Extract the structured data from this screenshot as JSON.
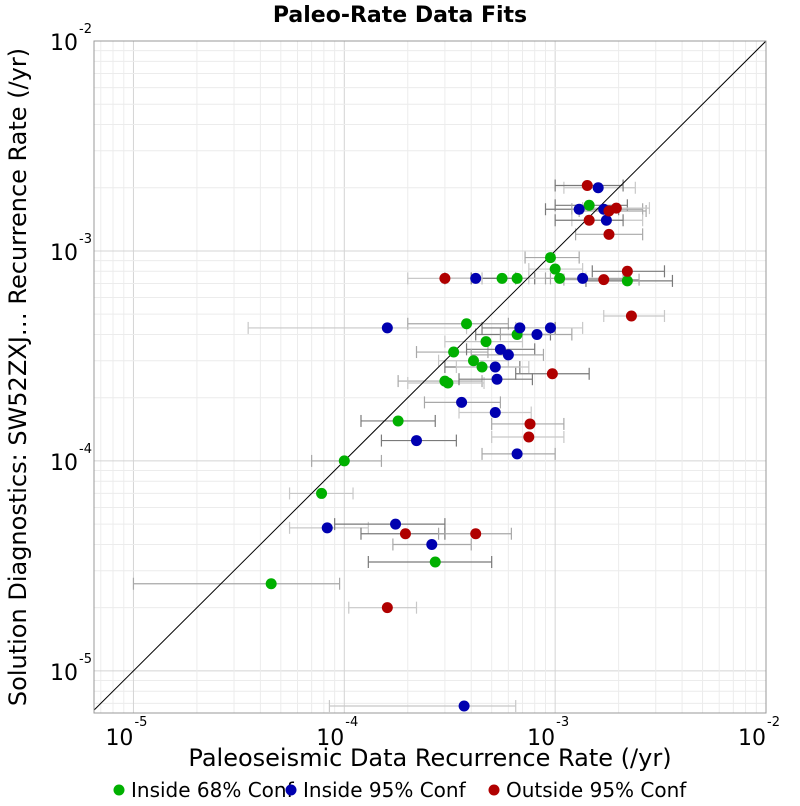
{
  "chart_data": {
    "type": "scatter",
    "title": "Paleo-Rate Data Fits",
    "xlabel": "Paleoseismic Data Recurrence Rate (/yr)",
    "ylabel": "Solution Diagnostics: SW52ZXJ… Recurrence Rate (/yr)",
    "x_scale": "log",
    "y_scale": "log",
    "xlim": [
      6.5e-06,
      0.01
    ],
    "ylim": [
      6.3e-06,
      0.01
    ],
    "x_ticks": [
      {
        "base": "10",
        "exp": "-5"
      },
      {
        "base": "10",
        "exp": "-4"
      },
      {
        "base": "10",
        "exp": "-3"
      },
      {
        "base": "10",
        "exp": "-2"
      }
    ],
    "y_ticks": [
      {
        "base": "10",
        "exp": "-5"
      },
      {
        "base": "10",
        "exp": "-4"
      },
      {
        "base": "10",
        "exp": "-3"
      },
      {
        "base": "10",
        "exp": "-2"
      }
    ],
    "grid": true,
    "reference_line": "y = x",
    "series": [
      {
        "name": "Inside 68% Conf",
        "color": "#00b000",
        "points": [
          {
            "x": 0.00145,
            "y": 0.00165,
            "xerr": [
              0.001,
              0.0022
            ]
          },
          {
            "x": 0.00095,
            "y": 0.00093,
            "xerr": [
              0.00072,
              0.0013
            ]
          },
          {
            "x": 0.001,
            "y": 0.00082,
            "xerr": [
              0.00075,
              0.00135
            ]
          },
          {
            "x": 0.00056,
            "y": 0.00074,
            "xerr": [
              0.0004,
              0.0008
            ]
          },
          {
            "x": 0.00066,
            "y": 0.00074,
            "xerr": [
              0.00045,
              0.00095
            ]
          },
          {
            "x": 0.00105,
            "y": 0.00074,
            "xerr": [
              0.00075,
              0.0014
            ]
          },
          {
            "x": 0.0022,
            "y": 0.00072,
            "xerr": [
              0.0014,
              0.0036
            ]
          },
          {
            "x": 0.00038,
            "y": 0.00045,
            "xerr": [
              0.0002,
              0.0006
            ]
          },
          {
            "x": 0.00047,
            "y": 0.00037,
            "xerr": [
              0.0003,
              0.0007
            ]
          },
          {
            "x": 0.00066,
            "y": 0.0004,
            "xerr": [
              0.00042,
              0.00095
            ]
          },
          {
            "x": 0.00033,
            "y": 0.00033,
            "xerr": [
              0.00022,
              0.00048
            ]
          },
          {
            "x": 0.00041,
            "y": 0.0003,
            "xerr": [
              0.00028,
              0.0006
            ]
          },
          {
            "x": 0.00045,
            "y": 0.00028,
            "xerr": [
              0.0003,
              0.00068
            ]
          },
          {
            "x": 0.0003,
            "y": 0.00024,
            "xerr": [
              0.00018,
              0.00045
            ]
          },
          {
            "x": 0.00031,
            "y": 0.000235,
            "xerr": [
              0.0002,
              0.00046
            ]
          },
          {
            "x": 0.00018,
            "y": 0.000155,
            "xerr": [
              0.00012,
              0.00027
            ]
          },
          {
            "x": 0.0001,
            "y": 0.0001,
            "xerr": [
              7e-05,
              0.00015
            ]
          },
          {
            "x": 7.8e-05,
            "y": 7e-05,
            "xerr": [
              5.5e-05,
              0.00011
            ]
          },
          {
            "x": 0.00027,
            "y": 3.3e-05,
            "xerr": [
              0.00013,
              0.0005
            ]
          },
          {
            "x": 4.5e-05,
            "y": 2.6e-05,
            "xerr": [
              1e-05,
              9.5e-05
            ]
          }
        ]
      },
      {
        "name": "Inside 95% Conf",
        "color": "#0000b0",
        "points": [
          {
            "x": 0.0016,
            "y": 0.002,
            "xerr": [
              0.0011,
              0.0024
            ]
          },
          {
            "x": 0.0013,
            "y": 0.00158,
            "xerr": [
              0.0009,
              0.002
            ]
          },
          {
            "x": 0.0017,
            "y": 0.00158,
            "xerr": [
              0.0012,
              0.0026
            ]
          },
          {
            "x": 0.00175,
            "y": 0.0014,
            "xerr": [
              0.0012,
              0.0026
            ]
          },
          {
            "x": 0.00042,
            "y": 0.00074,
            "xerr": [
              0.0003,
              0.00065
            ]
          },
          {
            "x": 0.00135,
            "y": 0.00074,
            "xerr": [
              0.0009,
              0.0021
            ]
          },
          {
            "x": 0.00016,
            "y": 0.00043,
            "xerr": [
              3.5e-05,
              0.00038
            ]
          },
          {
            "x": 0.00068,
            "y": 0.00043,
            "xerr": [
              0.00045,
              0.001
            ]
          },
          {
            "x": 0.00082,
            "y": 0.0004,
            "xerr": [
              0.00055,
              0.0012
            ]
          },
          {
            "x": 0.00095,
            "y": 0.00043,
            "xerr": [
              0.00065,
              0.00135
            ]
          },
          {
            "x": 0.00055,
            "y": 0.00034,
            "xerr": [
              0.00038,
              0.0008
            ]
          },
          {
            "x": 0.0006,
            "y": 0.00032,
            "xerr": [
              0.0004,
              0.00088
            ]
          },
          {
            "x": 0.00052,
            "y": 0.00028,
            "xerr": [
              0.00034,
              0.00075
            ]
          },
          {
            "x": 0.00053,
            "y": 0.000245,
            "xerr": [
              0.00035,
              0.00078
            ]
          },
          {
            "x": 0.00036,
            "y": 0.00019,
            "xerr": [
              0.00024,
              0.00055
            ]
          },
          {
            "x": 0.00052,
            "y": 0.00017,
            "xerr": [
              0.00035,
              0.00077
            ]
          },
          {
            "x": 0.00022,
            "y": 0.000125,
            "xerr": [
              0.00015,
              0.00034
            ]
          },
          {
            "x": 0.00066,
            "y": 0.000108,
            "xerr": [
              0.00045,
              0.001
            ]
          },
          {
            "x": 8.3e-05,
            "y": 4.8e-05,
            "xerr": [
              5.5e-05,
              0.00013
            ]
          },
          {
            "x": 0.000175,
            "y": 5e-05,
            "xerr": [
              9e-05,
              0.0003
            ]
          },
          {
            "x": 0.00026,
            "y": 4e-05,
            "xerr": [
              0.00017,
              0.0004
            ]
          },
          {
            "x": 0.00037,
            "y": 6.8e-06,
            "xerr": [
              8.5e-05,
              0.00065
            ]
          }
        ]
      },
      {
        "name": "Outside 95% Conf",
        "color": "#b00000",
        "points": [
          {
            "x": 0.00142,
            "y": 0.00205,
            "xerr": [
              0.001,
              0.0021
            ]
          },
          {
            "x": 0.0018,
            "y": 0.00155,
            "xerr": [
              0.0013,
              0.0027
            ]
          },
          {
            "x": 0.00195,
            "y": 0.0016,
            "xerr": [
              0.00135,
              0.0028
            ]
          },
          {
            "x": 0.00145,
            "y": 0.0014,
            "xerr": [
              0.001,
              0.0021
            ]
          },
          {
            "x": 0.0018,
            "y": 0.0012,
            "xerr": [
              0.00125,
              0.0026
            ]
          },
          {
            "x": 0.0003,
            "y": 0.00074,
            "xerr": [
              0.0002,
              0.00045
            ]
          },
          {
            "x": 0.0022,
            "y": 0.0008,
            "xerr": [
              0.0015,
              0.0033
            ]
          },
          {
            "x": 0.0017,
            "y": 0.00073,
            "xerr": [
              0.0011,
              0.0025
            ]
          },
          {
            "x": 0.0023,
            "y": 0.00049,
            "xerr": [
              0.0017,
              0.0033
            ]
          },
          {
            "x": 0.00097,
            "y": 0.00026,
            "xerr": [
              0.00065,
              0.00145
            ]
          },
          {
            "x": 0.00076,
            "y": 0.00015,
            "xerr": [
              0.0005,
              0.0011
            ]
          },
          {
            "x": 0.00075,
            "y": 0.00013,
            "xerr": [
              0.0005,
              0.0011
            ]
          },
          {
            "x": 0.000195,
            "y": 4.5e-05,
            "xerr": [
              0.00012,
              0.0003
            ]
          },
          {
            "x": 0.00042,
            "y": 4.5e-05,
            "xerr": [
              0.00028,
              0.00062
            ]
          },
          {
            "x": 0.00016,
            "y": 2e-05,
            "xerr": [
              0.000105,
              0.00022
            ]
          }
        ]
      }
    ],
    "legend": {
      "placement": "bottom",
      "entries": [
        "Inside 68% Conf",
        "Inside 95% Conf",
        "Outside 95% Conf"
      ]
    }
  }
}
